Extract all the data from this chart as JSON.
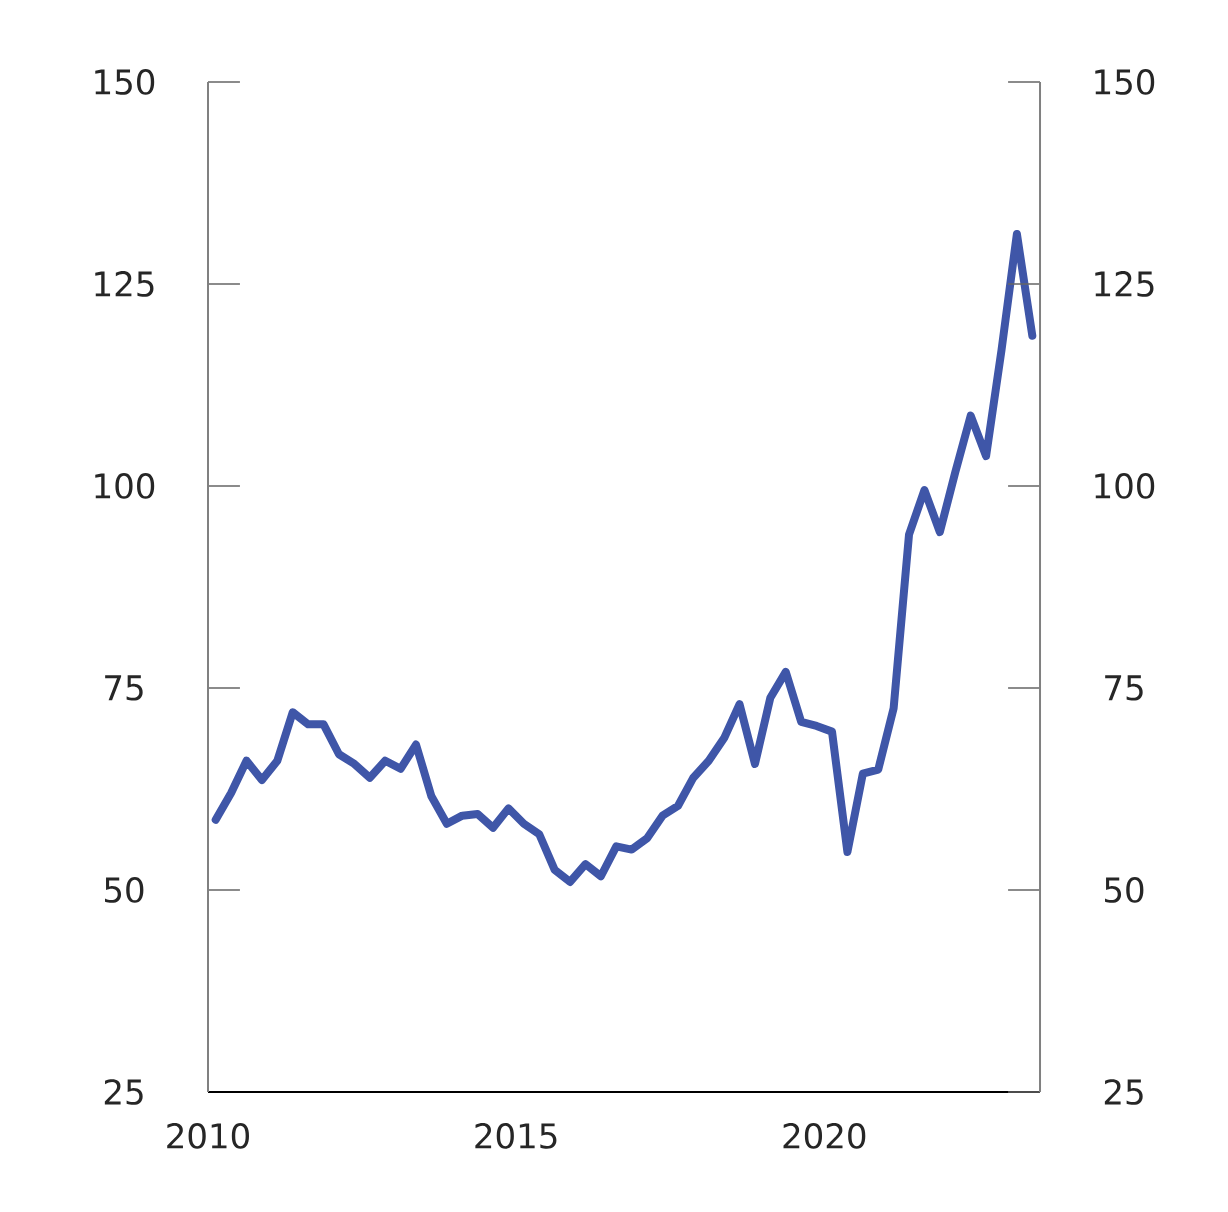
{
  "chart_data": {
    "type": "line",
    "x": [
      2010.125,
      2010.375,
      2010.625,
      2010.875,
      2011.125,
      2011.375,
      2011.625,
      2011.875,
      2012.125,
      2012.375,
      2012.625,
      2012.875,
      2013.125,
      2013.375,
      2013.625,
      2013.875,
      2014.125,
      2014.375,
      2014.625,
      2014.875,
      2015.125,
      2015.375,
      2015.625,
      2015.875,
      2016.125,
      2016.375,
      2016.625,
      2016.875,
      2017.125,
      2017.375,
      2017.625,
      2017.875,
      2018.125,
      2018.375,
      2018.625,
      2018.875,
      2019.125,
      2019.375,
      2019.625,
      2019.875,
      2020.125,
      2020.375,
      2020.625,
      2020.875,
      2021.125,
      2021.375,
      2021.625,
      2021.875,
      2022.125,
      2022.375,
      2022.625,
      2022.875,
      2023.125,
      2023.375
    ],
    "series": [
      {
        "color": "#3f56a8",
        "values": [
          58.7,
          62,
          66,
          63.6,
          66,
          72,
          70.5,
          70.5,
          66.8,
          65.6,
          63.9,
          66,
          65,
          68,
          61.6,
          58.2,
          59.2,
          59.4,
          57.7,
          60.1,
          58.2,
          56.9,
          52.5,
          51,
          53.2,
          51.7,
          55.4,
          55,
          56.4,
          59.2,
          60.4,
          63.9,
          66,
          68.8,
          73,
          65.6,
          73.8,
          77,
          70.8,
          70.3,
          69.6,
          54.7,
          64.4,
          64.9,
          72.5,
          94,
          99.5,
          94.3,
          101.7,
          108.7,
          103.7,
          116.8,
          131.2,
          118.6
        ]
      }
    ],
    "xlim": [
      2010,
      2023.5
    ],
    "xticks": [
      2010,
      2015,
      2020
    ],
    "ylim": [
      25,
      150
    ],
    "yticks": [
      25,
      50,
      75,
      100,
      125,
      150
    ],
    "y2lim": [
      25,
      150
    ],
    "y2ticks": [
      25,
      50,
      75,
      100,
      125,
      150
    ],
    "grid": false,
    "marker": "none",
    "line_style": "solid"
  }
}
